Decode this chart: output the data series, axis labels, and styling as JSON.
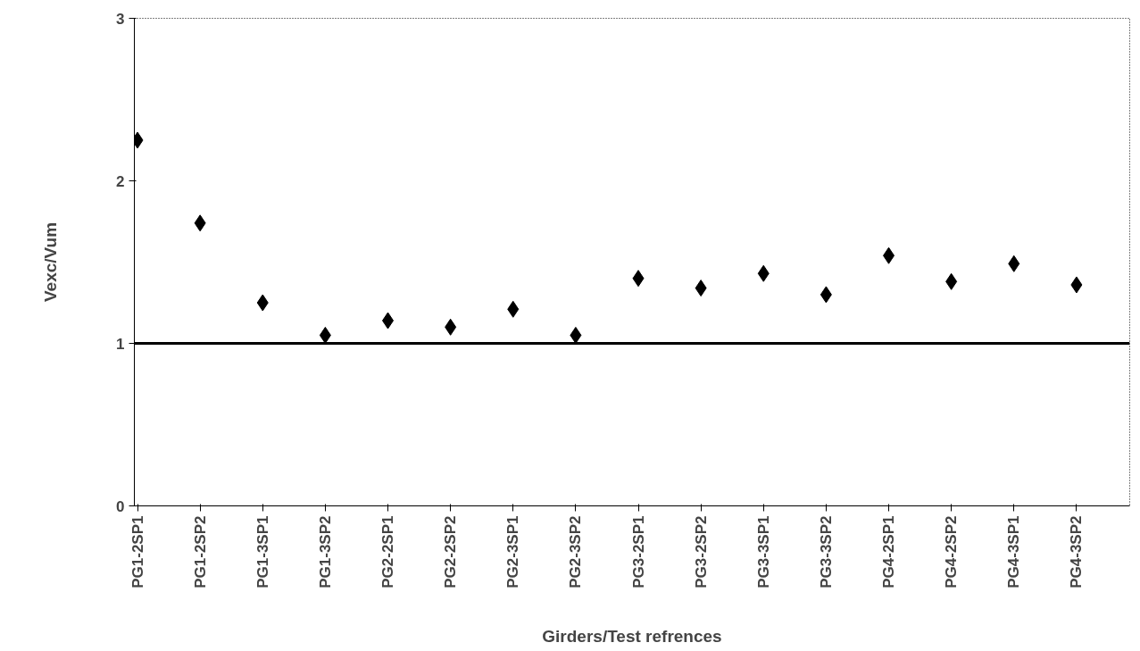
{
  "chart_data": {
    "type": "scatter",
    "xlabel": "Girders/Test refrences",
    "ylabel": "Vexc/Vum",
    "categories": [
      "PG1-2SP1",
      "PG1-2SP2",
      "PG1-3SP1",
      "PG1-3SP2",
      "PG2-2SP1",
      "PG2-2SP2",
      "PG2-3SP1",
      "PG2-3SP2",
      "PG3-2SP1",
      "PG3-2SP2",
      "PG3-3SP1",
      "PG3-3SP2",
      "PG4-2SP1",
      "PG4-2SP2",
      "PG4-3SP1",
      "PG4-3SP2"
    ],
    "series": [
      {
        "color": "#000000",
        "values": [
          2.25,
          1.74,
          1.25,
          1.05,
          1.14,
          1.1,
          1.21,
          1.05,
          1.4,
          1.34,
          1.43,
          1.3,
          1.54,
          1.38,
          1.49,
          1.36
        ]
      }
    ],
    "ylim": [
      0,
      3
    ],
    "yticks": [
      0,
      1,
      2,
      3
    ],
    "ref_lines": [
      {
        "axis": "y",
        "value": 1,
        "color": "#000000",
        "line_style": "solid"
      }
    ],
    "marker": "diamond",
    "grid": false
  }
}
